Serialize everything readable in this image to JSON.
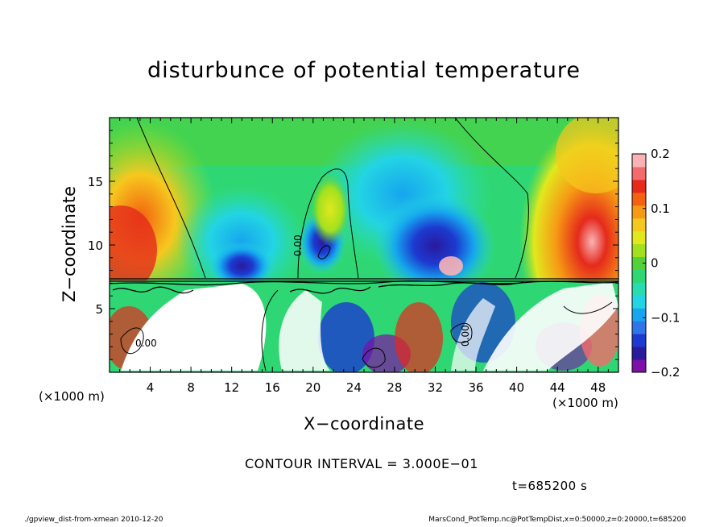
{
  "chart_data": {
    "type": "heatmap",
    "title": "disturbunce of potential temperature",
    "xlabel": "X−coordinate",
    "ylabel": "Z−coordinate",
    "x_unit_left": "(×1000 m)",
    "x_unit_right": "(×1000 m)",
    "xlim": [
      0,
      50
    ],
    "ylim": [
      0,
      20
    ],
    "x_ticks": [
      4,
      8,
      12,
      16,
      20,
      24,
      28,
      32,
      36,
      40,
      44,
      48
    ],
    "y_ticks": [
      5,
      10,
      15
    ],
    "x_tick_labels": [
      "4",
      "8",
      "12",
      "16",
      "20",
      "24",
      "28",
      "32",
      "36",
      "40",
      "44",
      "48"
    ],
    "y_tick_labels": [
      "5",
      "10",
      "15"
    ],
    "colorbar": {
      "range": [
        -0.2,
        0.2
      ],
      "ticks": [
        0.2,
        0.1,
        0,
        -0.1,
        -0.2
      ],
      "tick_labels": [
        "0.2",
        "0.1",
        "0",
        "−0.1",
        "−0.2"
      ],
      "colors": [
        "#7d10a6",
        "#2a1a9e",
        "#1c3ad0",
        "#2f74e8",
        "#16a5ee",
        "#23d4e4",
        "#27ddb0",
        "#2fd774",
        "#54d138",
        "#a3e01e",
        "#e1e81e",
        "#f6c81e",
        "#f69a14",
        "#f2620f",
        "#e52a1c",
        "#f46b6b",
        "#f9b3b6"
      ]
    },
    "contour_labels": [
      "0.00",
      "0.00",
      "0.00"
    ],
    "contour_interval_text": "CONTOUR INTERVAL = 3.000E−01",
    "time_text": "t=685200 s"
  },
  "footer": {
    "left": "./gpview_dist-from-xmean  2010-12-20",
    "right": "MarsCond_PotTemp.nc@PotTempDist,x=0:50000,z=0:20000,t=685200"
  }
}
